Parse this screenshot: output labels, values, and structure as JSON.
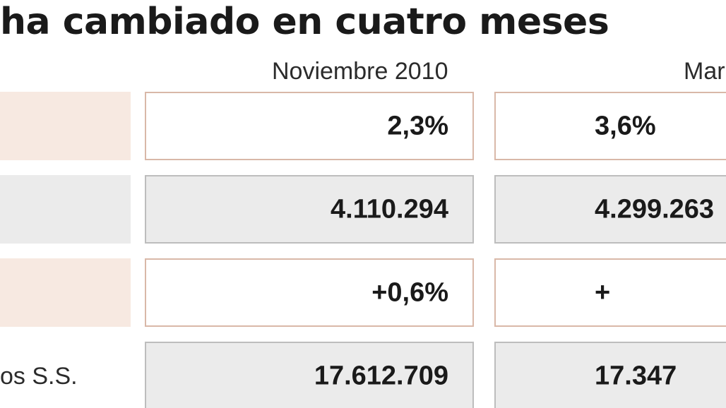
{
  "title": "ha cambiado en cuatro meses",
  "columns": [
    "Noviembre 2010",
    "Mar"
  ],
  "rows": [
    {
      "label": "",
      "style": "salmon",
      "values": [
        "2,3%",
        "3,6%"
      ]
    },
    {
      "label": "",
      "style": "grey",
      "values": [
        "4.110.294",
        "4.299.263"
      ]
    },
    {
      "label": "",
      "style": "salmon",
      "values": [
        "+0,6%",
        "+"
      ]
    },
    {
      "label": "os S.S.",
      "style": "grey",
      "values": [
        "17.612.709",
        "17.347"
      ]
    }
  ],
  "colors": {
    "salmon_fill": "#f7e9e1",
    "salmon_border": "#d9b8a8",
    "grey_fill": "#ebebeb",
    "grey_border": "#bdbdbd",
    "text": "#1a1a1a"
  }
}
